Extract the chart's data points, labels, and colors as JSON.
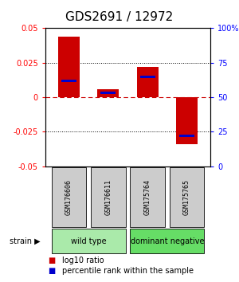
{
  "title": "GDS2691 / 12972",
  "samples": [
    "GSM176606",
    "GSM176611",
    "GSM175764",
    "GSM175765"
  ],
  "log10_ratio": [
    0.044,
    0.006,
    0.022,
    -0.034
  ],
  "percentile_rank": [
    62,
    53,
    65,
    22
  ],
  "ylim_left": [
    -0.05,
    0.05
  ],
  "yticks_left": [
    -0.05,
    -0.025,
    0,
    0.025,
    0.05
  ],
  "ytick_labels_left": [
    "-0.05",
    "-0.025",
    "0",
    "0.025",
    "0.05"
  ],
  "ytick_labels_right": [
    "0",
    "25",
    "50",
    "75",
    "100%"
  ],
  "groups": [
    {
      "name": "wild type",
      "indices": [
        0,
        1
      ],
      "color": "#aaeaaa"
    },
    {
      "name": "dominant negative",
      "indices": [
        2,
        3
      ],
      "color": "#66dd66"
    }
  ],
  "bar_color_red": "#cc0000",
  "bar_color_blue": "#0000cc",
  "bar_width": 0.55,
  "bg_color": "#ffffff",
  "sample_box_color": "#cccccc",
  "title_fontsize": 11,
  "legend_red_label": "log10 ratio",
  "legend_blue_label": "percentile rank within the sample",
  "strain_label": "strain"
}
